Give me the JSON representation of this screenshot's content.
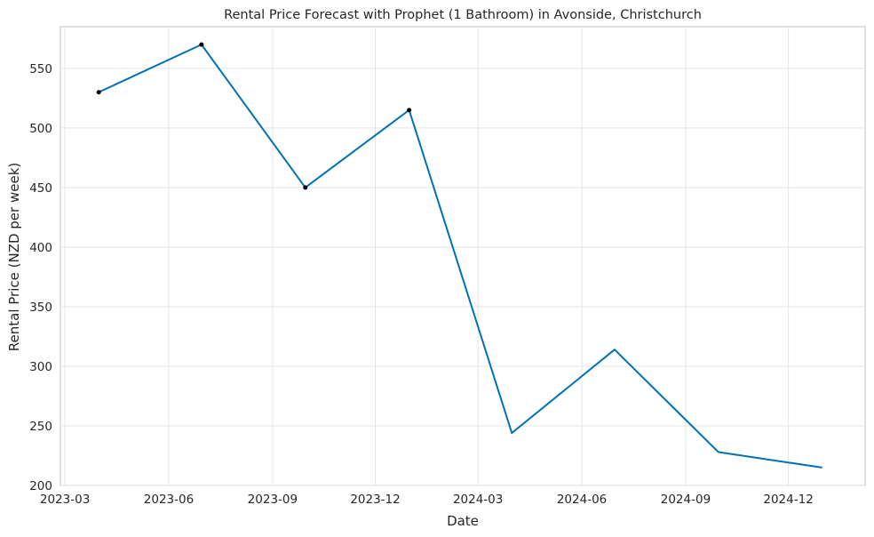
{
  "chart_data": {
    "type": "line",
    "title": "Rental Price Forecast with Prophet (1 Bathroom) in Avonside, Christchurch",
    "xlabel": "Date",
    "ylabel": "Rental Price (NZD per week)",
    "x_ticks": [
      "2023-03",
      "2023-06",
      "2023-09",
      "2023-12",
      "2024-03",
      "2024-06",
      "2024-09",
      "2024-12"
    ],
    "y_ticks": [
      200,
      250,
      300,
      350,
      400,
      450,
      500,
      550
    ],
    "grid": true,
    "series": [
      {
        "color": "#0072B2",
        "points": [
          {
            "date": "2023-03-31",
            "value": 530
          },
          {
            "date": "2023-06-30",
            "value": 570
          },
          {
            "date": "2023-09-30",
            "value": 450
          },
          {
            "date": "2023-12-31",
            "value": 515
          },
          {
            "date": "2024-03-31",
            "value": 244
          },
          {
            "date": "2024-06-30",
            "value": 314
          },
          {
            "date": "2024-09-30",
            "value": 228
          },
          {
            "date": "2024-12-31",
            "value": 215
          }
        ]
      }
    ],
    "observed": [
      {
        "date": "2023-03-31",
        "value": 530
      },
      {
        "date": "2023-06-30",
        "value": 570
      },
      {
        "date": "2023-09-30",
        "value": 450
      },
      {
        "date": "2023-12-31",
        "value": 515
      }
    ],
    "ylim": [
      200,
      585
    ],
    "xlim": [
      "2023-02-25",
      "2025-02-07"
    ]
  }
}
